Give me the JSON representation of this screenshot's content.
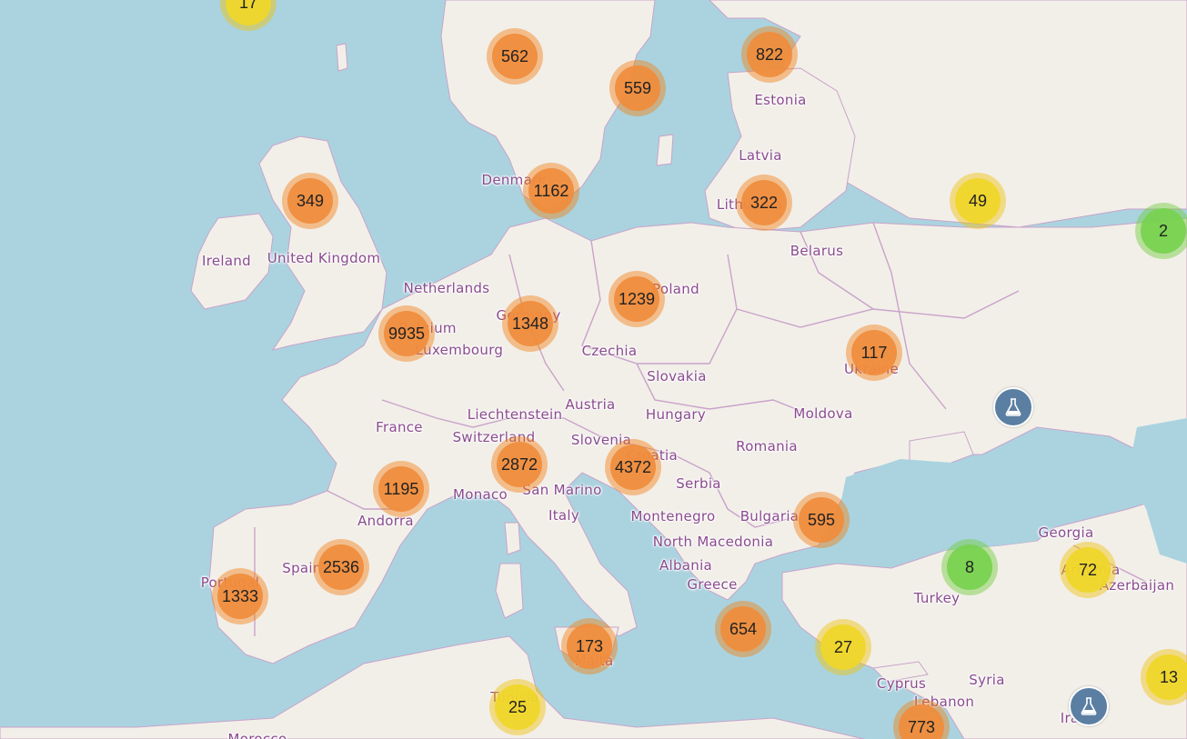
{
  "map": {
    "colors": {
      "sea": "#aad3df",
      "land": "#f2efe9",
      "border": "#c9a3c9",
      "label": "#8a4a8e",
      "cluster_orange": "#f08c3c",
      "cluster_yellow": "#f0d728",
      "cluster_green": "#78d250",
      "lab_marker": "#5b7fa3"
    },
    "country_labels": [
      "Ireland",
      "United Kingdom",
      "Netherlands",
      "Belgium",
      "Luxembourg",
      "Germany",
      "Denmark",
      "Estonia",
      "Latvia",
      "Lithuania",
      "Belarus",
      "Poland",
      "Czechia",
      "Slovakia",
      "Austria",
      "Liechtenstein",
      "Switzerland",
      "France",
      "Hungary",
      "Slovenia",
      "Croatia",
      "Moldova",
      "Ukraine",
      "Romania",
      "Serbia",
      "Monaco",
      "San Marino",
      "Andorra",
      "Italy",
      "Montenegro",
      "Bulgaria",
      "North Macedonia",
      "Albania",
      "Greece",
      "Spain",
      "Portugal",
      "Turkey",
      "Georgia",
      "Armenia",
      "Azerbaijan",
      "Cyprus",
      "Syria",
      "Lebanon",
      "Malta",
      "Tunisia",
      "Iraq",
      "Morocco"
    ],
    "clusters": [
      {
        "count": "17",
        "level": "yellow"
      },
      {
        "count": "562",
        "level": "orange"
      },
      {
        "count": "559",
        "level": "orange"
      },
      {
        "count": "822",
        "level": "orange"
      },
      {
        "count": "349",
        "level": "orange"
      },
      {
        "count": "1162",
        "level": "orange"
      },
      {
        "count": "322",
        "level": "orange"
      },
      {
        "count": "49",
        "level": "yellow"
      },
      {
        "count": "2",
        "level": "green"
      },
      {
        "count": "1239",
        "level": "orange"
      },
      {
        "count": "9935",
        "level": "orange"
      },
      {
        "count": "1348",
        "level": "orange"
      },
      {
        "count": "117",
        "level": "orange"
      },
      {
        "count": "2872",
        "level": "orange"
      },
      {
        "count": "4372",
        "level": "orange"
      },
      {
        "count": "1195",
        "level": "orange"
      },
      {
        "count": "595",
        "level": "orange"
      },
      {
        "count": "2536",
        "level": "orange"
      },
      {
        "count": "1333",
        "level": "orange"
      },
      {
        "count": "8",
        "level": "green"
      },
      {
        "count": "72",
        "level": "yellow"
      },
      {
        "count": "654",
        "level": "orange"
      },
      {
        "count": "173",
        "level": "orange"
      },
      {
        "count": "27",
        "level": "yellow"
      },
      {
        "count": "13",
        "level": "yellow"
      },
      {
        "count": "25",
        "level": "yellow"
      },
      {
        "count": "773",
        "level": "orange"
      }
    ],
    "markers": [
      {
        "icon": "flask-icon"
      },
      {
        "icon": "flask-icon"
      }
    ]
  }
}
